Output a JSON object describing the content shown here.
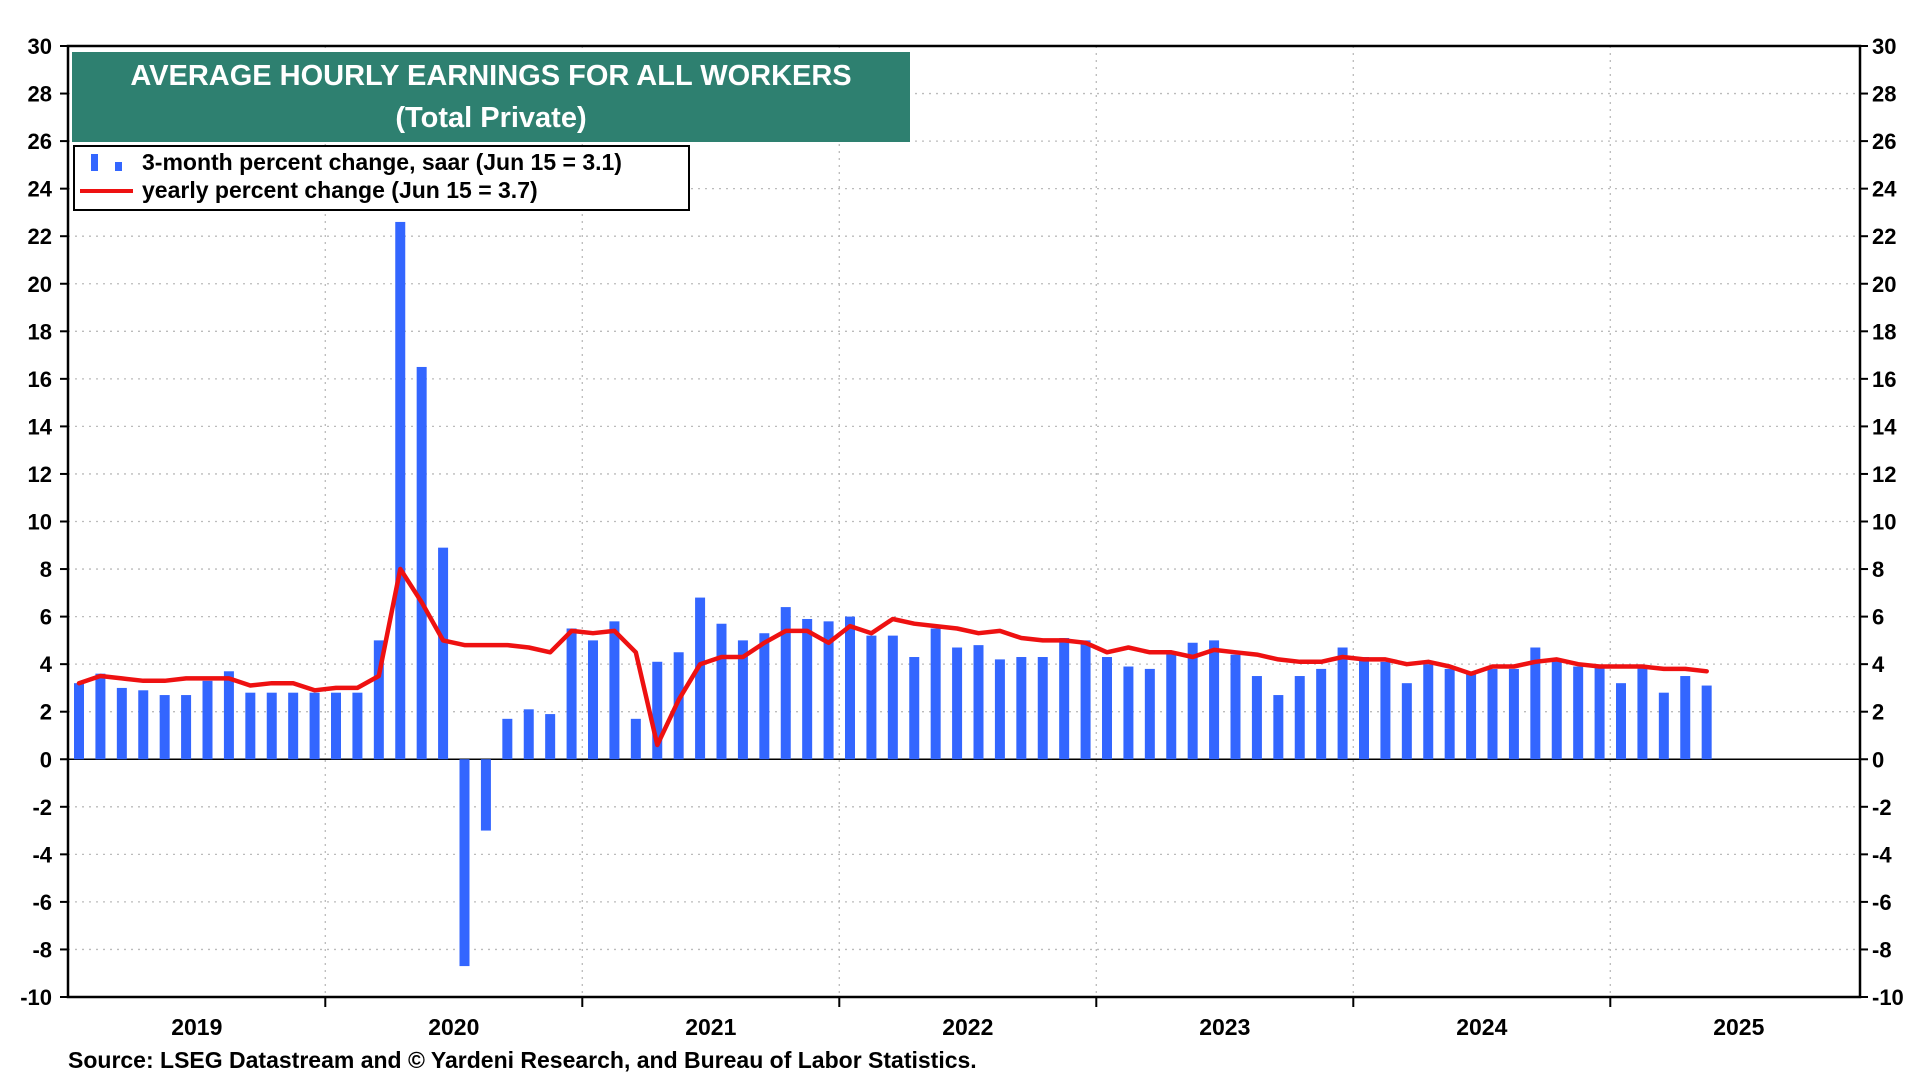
{
  "chart_data": {
    "type": "bar",
    "title": "AVERAGE HOURLY EARNINGS FOR ALL WORKERS",
    "subtitle": "(Total Private)",
    "source": "Source: LSEG Datastream and © Yardeni Research, and Bureau of Labor Statistics.",
    "ylim": [
      -10,
      30
    ],
    "yticks": [
      "-10",
      "-8",
      "-6",
      "-4",
      "-2",
      "0",
      "2",
      "4",
      "6",
      "8",
      "10",
      "12",
      "14",
      "16",
      "18",
      "20",
      "22",
      "24",
      "26",
      "28",
      "30"
    ],
    "grid": true,
    "legend_position": "top-left",
    "x_start": "2019-01",
    "year_labels": [
      "2019",
      "2020",
      "2021",
      "2022",
      "2023",
      "2024",
      "2025"
    ],
    "series": [
      {
        "name": "3-month percent change, saar (Jun 15 = 3.1)",
        "type": "bar",
        "color": "#3366ff",
        "x": [
          "2019-01",
          "2019-02",
          "2019-03",
          "2019-04",
          "2019-05",
          "2019-06",
          "2019-07",
          "2019-08",
          "2019-09",
          "2019-10",
          "2019-11",
          "2019-12",
          "2020-01",
          "2020-02",
          "2020-03",
          "2020-04",
          "2020-05",
          "2020-06",
          "2020-07",
          "2020-08",
          "2020-09",
          "2020-10",
          "2020-11",
          "2020-12",
          "2021-01",
          "2021-02",
          "2021-03",
          "2021-04",
          "2021-05",
          "2021-06",
          "2021-07",
          "2021-08",
          "2021-09",
          "2021-10",
          "2021-11",
          "2021-12",
          "2022-01",
          "2022-02",
          "2022-03",
          "2022-04",
          "2022-05",
          "2022-06",
          "2022-07",
          "2022-08",
          "2022-09",
          "2022-10",
          "2022-11",
          "2022-12",
          "2023-01",
          "2023-02",
          "2023-03",
          "2023-04",
          "2023-05",
          "2023-06",
          "2023-07",
          "2023-08",
          "2023-09",
          "2023-10",
          "2023-11",
          "2023-12",
          "2024-01",
          "2024-02",
          "2024-03",
          "2024-04",
          "2024-05",
          "2024-06",
          "2024-07",
          "2024-08",
          "2024-09",
          "2024-10",
          "2024-11",
          "2024-12",
          "2025-01",
          "2025-02",
          "2025-03",
          "2025-04",
          "2025-05"
        ],
        "values": [
          3.2,
          3.6,
          3.0,
          2.9,
          2.7,
          2.7,
          3.3,
          3.7,
          2.8,
          2.8,
          2.8,
          2.8,
          2.8,
          2.8,
          5.0,
          22.6,
          16.5,
          8.9,
          -8.7,
          -3.0,
          1.7,
          2.1,
          1.9,
          5.5,
          5.0,
          5.8,
          1.7,
          4.1,
          4.5,
          6.8,
          5.7,
          5.0,
          5.3,
          6.4,
          5.9,
          5.8,
          6.0,
          5.2,
          5.2,
          4.3,
          5.5,
          4.7,
          4.8,
          4.2,
          4.3,
          4.3,
          5.1,
          5.0,
          4.3,
          3.9,
          3.8,
          4.5,
          4.9,
          5.0,
          4.4,
          3.5,
          2.7,
          3.5,
          3.8,
          4.7,
          4.3,
          4.1,
          3.2,
          4.0,
          3.8,
          3.6,
          3.8,
          3.8,
          4.7,
          4.2,
          3.9,
          3.9,
          3.2,
          3.9,
          2.8,
          3.5,
          3.1
        ]
      },
      {
        "name": "yearly percent change (Jun 15 = 3.7)",
        "type": "line",
        "color": "#ee1111",
        "x": [
          "2019-01",
          "2019-02",
          "2019-03",
          "2019-04",
          "2019-05",
          "2019-06",
          "2019-07",
          "2019-08",
          "2019-09",
          "2019-10",
          "2019-11",
          "2019-12",
          "2020-01",
          "2020-02",
          "2020-03",
          "2020-04",
          "2020-05",
          "2020-06",
          "2020-07",
          "2020-08",
          "2020-09",
          "2020-10",
          "2020-11",
          "2020-12",
          "2021-01",
          "2021-02",
          "2021-03",
          "2021-04",
          "2021-05",
          "2021-06",
          "2021-07",
          "2021-08",
          "2021-09",
          "2021-10",
          "2021-11",
          "2021-12",
          "2022-01",
          "2022-02",
          "2022-03",
          "2022-04",
          "2022-05",
          "2022-06",
          "2022-07",
          "2022-08",
          "2022-09",
          "2022-10",
          "2022-11",
          "2022-12",
          "2023-01",
          "2023-02",
          "2023-03",
          "2023-04",
          "2023-05",
          "2023-06",
          "2023-07",
          "2023-08",
          "2023-09",
          "2023-10",
          "2023-11",
          "2023-12",
          "2024-01",
          "2024-02",
          "2024-03",
          "2024-04",
          "2024-05",
          "2024-06",
          "2024-07",
          "2024-08",
          "2024-09",
          "2024-10",
          "2024-11",
          "2024-12",
          "2025-01",
          "2025-02",
          "2025-03",
          "2025-04",
          "2025-05"
        ],
        "values": [
          3.2,
          3.5,
          3.4,
          3.3,
          3.3,
          3.4,
          3.4,
          3.4,
          3.1,
          3.2,
          3.2,
          2.9,
          3.0,
          3.0,
          3.5,
          8.0,
          6.6,
          5.0,
          4.8,
          4.8,
          4.8,
          4.7,
          4.5,
          5.4,
          5.3,
          5.4,
          4.5,
          0.6,
          2.5,
          4.0,
          4.3,
          4.3,
          4.9,
          5.4,
          5.4,
          4.9,
          5.6,
          5.3,
          5.9,
          5.7,
          5.6,
          5.5,
          5.3,
          5.4,
          5.1,
          5.0,
          5.0,
          4.9,
          4.5,
          4.7,
          4.5,
          4.5,
          4.3,
          4.6,
          4.5,
          4.4,
          4.2,
          4.1,
          4.1,
          4.3,
          4.2,
          4.2,
          4.0,
          4.1,
          3.9,
          3.6,
          3.9,
          3.9,
          4.1,
          4.2,
          4.0,
          3.9,
          3.9,
          3.9,
          3.8,
          3.8,
          3.7
        ]
      }
    ]
  }
}
